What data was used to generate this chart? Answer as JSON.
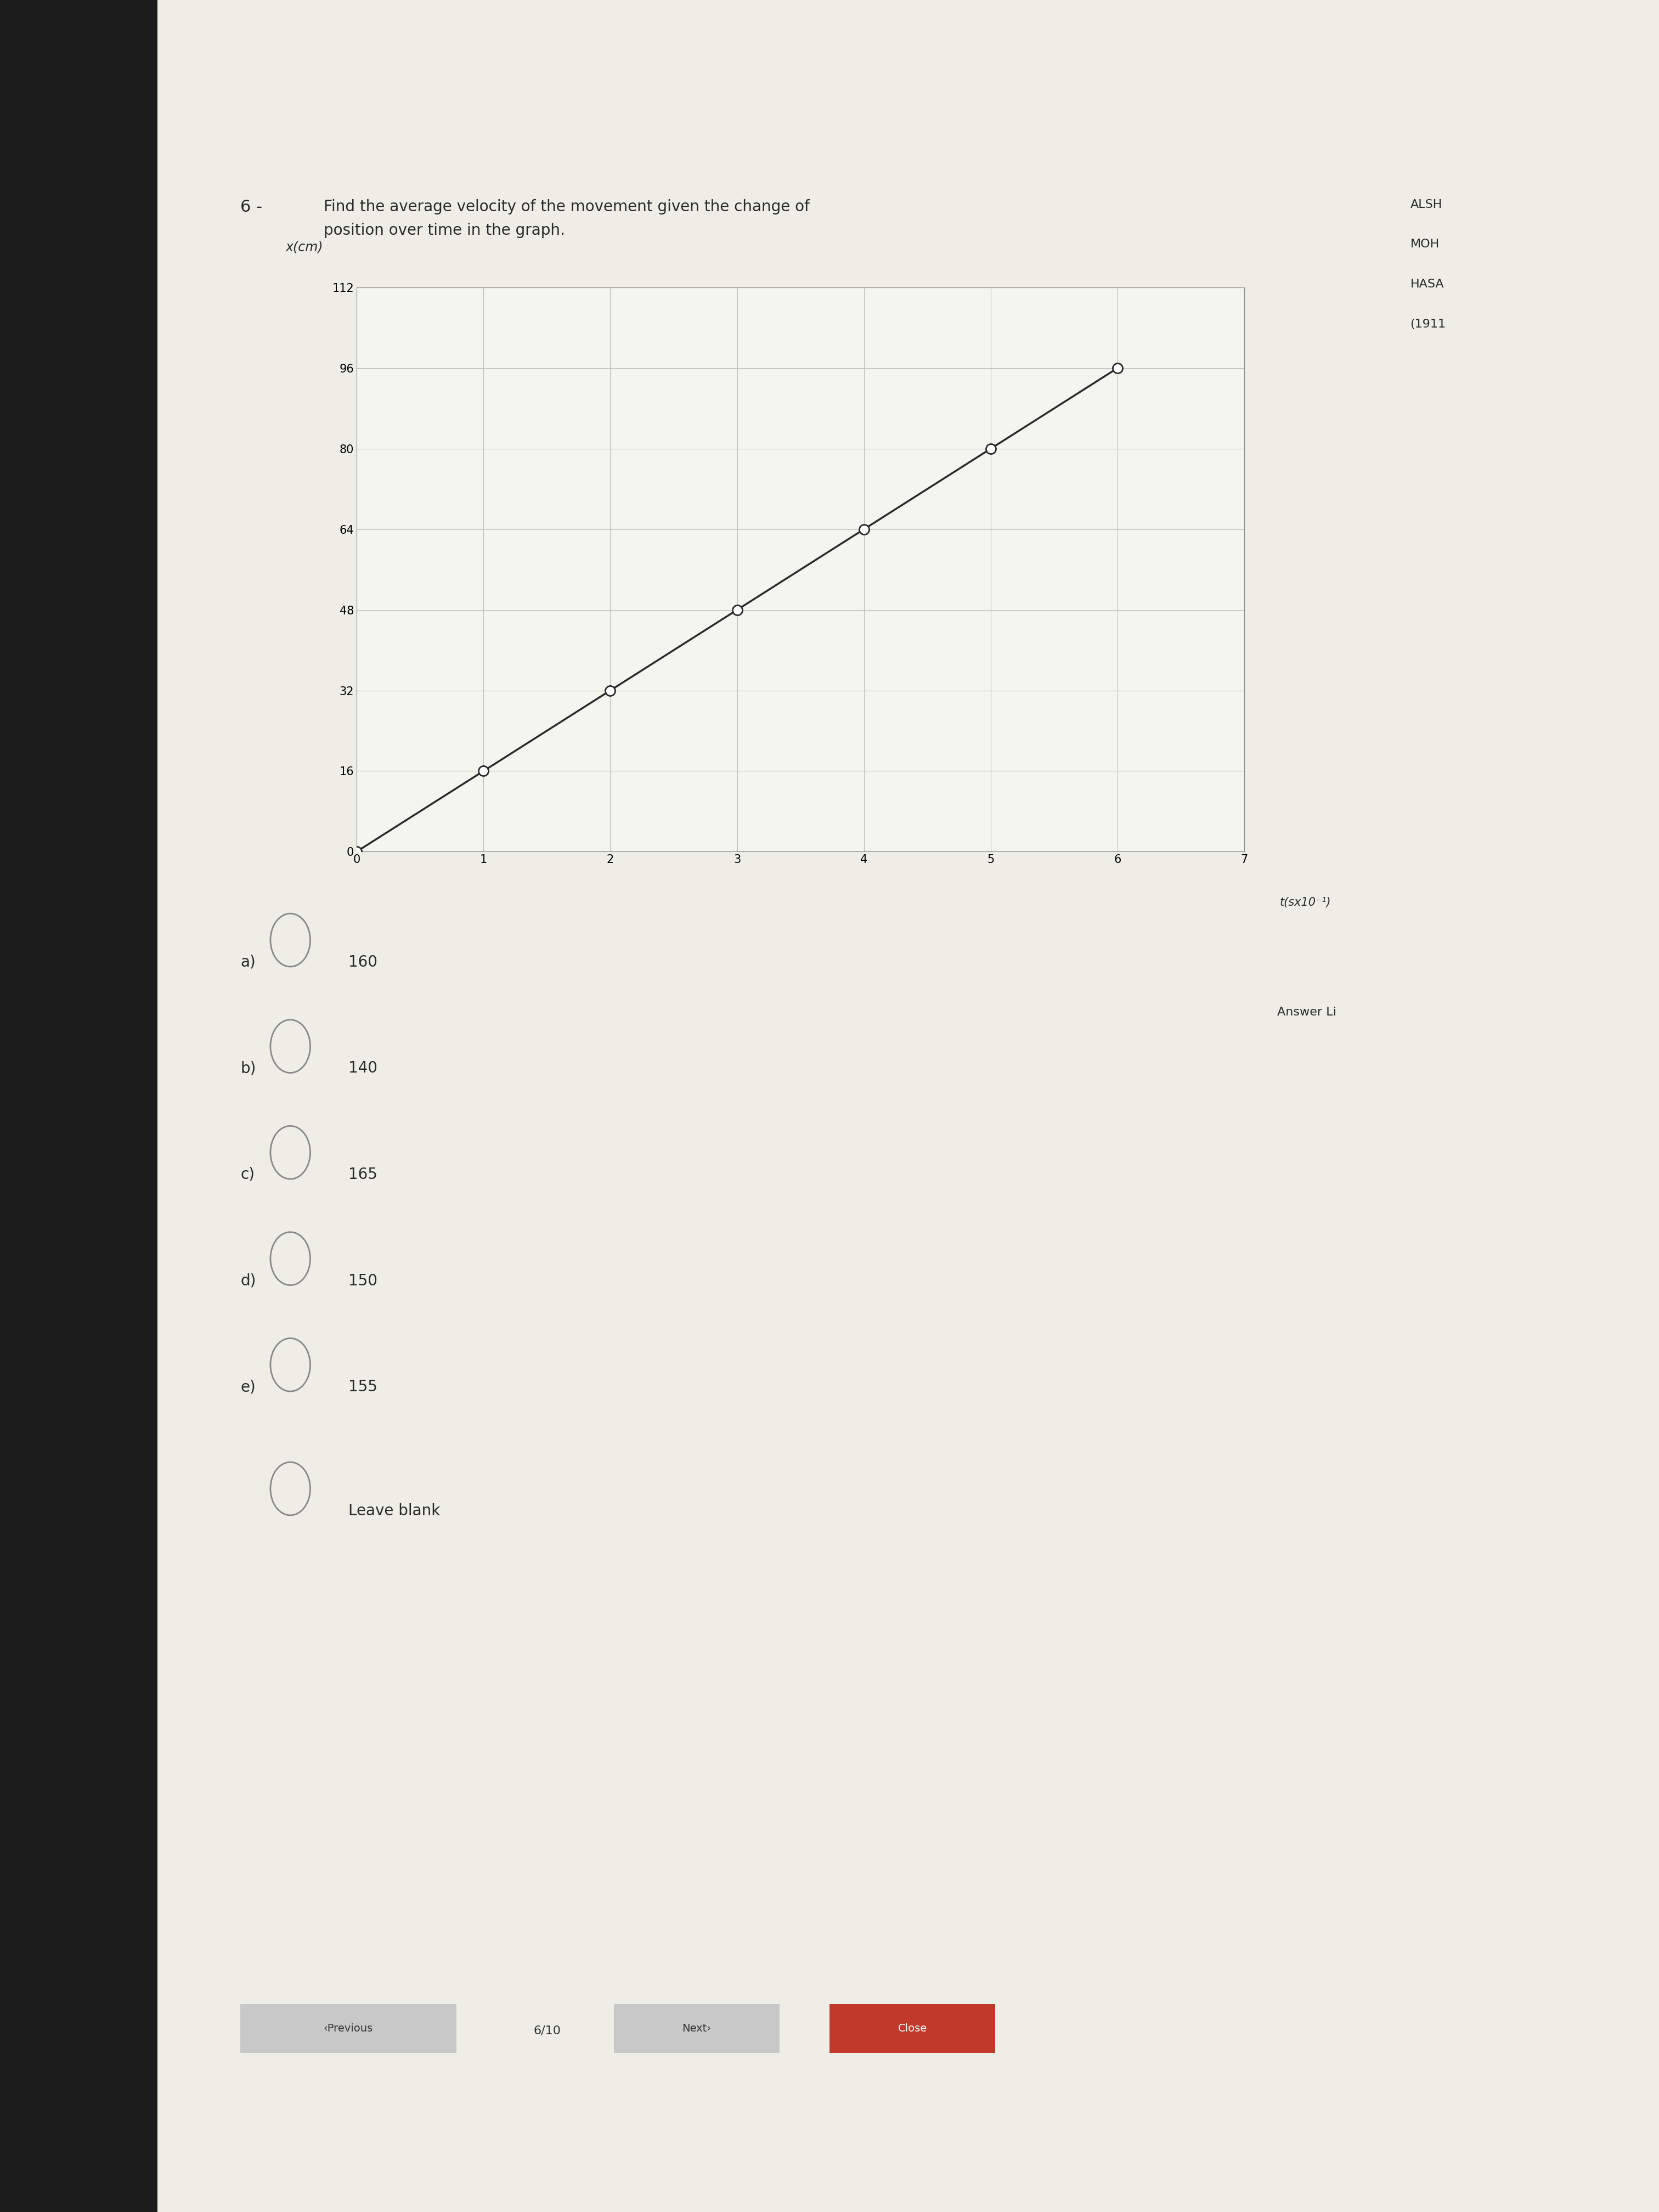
{
  "question_number": "6 -",
  "question_text": "Find the average velocity of the movement given the change of\nposition over time in the graph.",
  "xlabel": "t(sx10⁻¹)",
  "ylabel": "x(cm)",
  "x_data": [
    0,
    1,
    2,
    3,
    4,
    5,
    6
  ],
  "y_data": [
    0,
    16,
    32,
    48,
    64,
    80,
    96
  ],
  "xlim": [
    0,
    7
  ],
  "ylim": [
    0,
    112
  ],
  "x_ticks": [
    0,
    1,
    2,
    3,
    4,
    5,
    6,
    7
  ],
  "y_ticks": [
    0,
    16,
    32,
    48,
    64,
    80,
    96,
    112
  ],
  "line_color": "#2a2a2a",
  "marker_color": "#ffffff",
  "marker_edge_color": "#2a2a2a",
  "grid_color": "#bbbbbb",
  "graph_bg": "#f5f5f0",
  "page_bg": "#eeeee6",
  "left_strip_color": "#1c1c1c",
  "options": [
    {
      "label": "a)",
      "value": "160"
    },
    {
      "label": "b)",
      "value": "140"
    },
    {
      "label": "c)",
      "value": "165"
    },
    {
      "label": "d)",
      "value": "150"
    },
    {
      "label": "e)",
      "value": "155"
    }
  ],
  "leave_blank": "Leave blank",
  "close_button_color": "#c0392b",
  "prev_btn_bg": "#cccccc",
  "next_btn_bg": "#cccccc",
  "nav_text_left": "‹Previous",
  "nav_text_center": "6/10",
  "nav_text_next": "Next›",
  "close_text": "Close",
  "right_sidebar_texts": [
    "ALSH",
    "MOH",
    "HASA",
    "(1911"
  ],
  "answer_list_text": "Answer Li"
}
